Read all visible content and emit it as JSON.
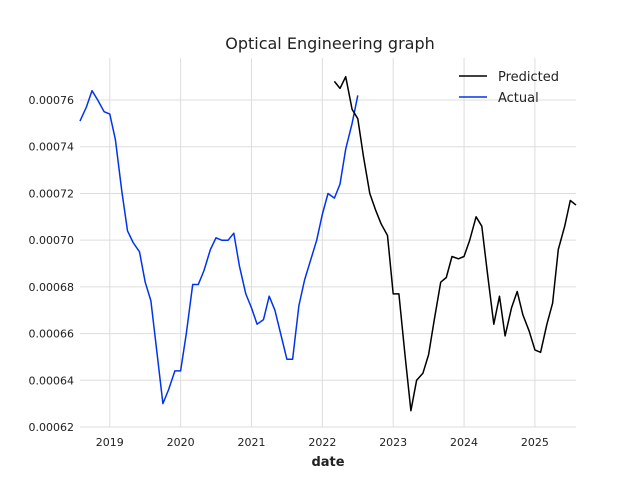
{
  "chart_data": {
    "type": "line",
    "title": "Optical Engineering graph",
    "xlabel": "date",
    "ylabel": "",
    "xlim": [
      2018.58,
      2025.58
    ],
    "ylim": [
      0.00062,
      0.000778
    ],
    "x_ticks": [
      "2019",
      "2020",
      "2021",
      "2022",
      "2023",
      "2024",
      "2025"
    ],
    "y_ticks": [
      "0.00062",
      "0.00064",
      "0.00066",
      "0.00068",
      "0.00070",
      "0.00072",
      "0.00074",
      "0.00076"
    ],
    "grid": true,
    "legend": "top-right",
    "series": [
      {
        "name": "Actual",
        "color": "#0033ee",
        "x": [
          2018.58,
          2018.67,
          2018.75,
          2018.83,
          2018.92,
          2019.0,
          2019.08,
          2019.17,
          2019.25,
          2019.33,
          2019.42,
          2019.5,
          2019.58,
          2019.67,
          2019.75,
          2019.83,
          2019.92,
          2020.0,
          2020.08,
          2020.17,
          2020.25,
          2020.33,
          2020.42,
          2020.5,
          2020.58,
          2020.67,
          2020.75,
          2020.83,
          2020.92,
          2021.0,
          2021.08,
          2021.17,
          2021.25,
          2021.33,
          2021.42,
          2021.5,
          2021.58,
          2021.67,
          2021.75,
          2021.83,
          2021.92,
          2022.0,
          2022.08,
          2022.17,
          2022.25,
          2022.33,
          2022.42,
          2022.5
        ],
        "y": [
          0.000751,
          0.000757,
          0.000764,
          0.00076,
          0.000755,
          0.000754,
          0.000743,
          0.000721,
          0.000704,
          0.000699,
          0.000695,
          0.000682,
          0.000674,
          0.000651,
          0.00063,
          0.000636,
          0.000644,
          0.000644,
          0.00066,
          0.000681,
          0.000681,
          0.000687,
          0.000696,
          0.000701,
          0.0007,
          0.0007,
          0.000703,
          0.000689,
          0.000677,
          0.000671,
          0.000664,
          0.000666,
          0.000676,
          0.00067,
          0.000659,
          0.000649,
          0.000649,
          0.000672,
          0.000683,
          0.000691,
          0.0007,
          0.000711,
          0.00072,
          0.000718,
          0.000724,
          0.000739,
          0.00075,
          0.000762
        ]
      },
      {
        "name": "Predicted",
        "color": "#000000",
        "x": [
          2022.17,
          2022.25,
          2022.33,
          2022.42,
          2022.5,
          2022.58,
          2022.67,
          2022.75,
          2022.83,
          2022.92,
          2023.0,
          2023.08,
          2023.17,
          2023.25,
          2023.33,
          2023.42,
          2023.5,
          2023.58,
          2023.67,
          2023.75,
          2023.83,
          2023.92,
          2024.0,
          2024.08,
          2024.17,
          2024.25,
          2024.33,
          2024.42,
          2024.5,
          2024.58,
          2024.67,
          2024.75,
          2024.83,
          2024.92,
          2025.0,
          2025.08,
          2025.17,
          2025.25,
          2025.33,
          2025.42,
          2025.5,
          2025.58
        ],
        "y": [
          0.000768,
          0.000765,
          0.00077,
          0.000756,
          0.000752,
          0.000736,
          0.00072,
          0.000713,
          0.000707,
          0.000702,
          0.000677,
          0.000677,
          0.00065,
          0.000627,
          0.00064,
          0.000643,
          0.000651,
          0.000666,
          0.000682,
          0.000684,
          0.000693,
          0.000692,
          0.000693,
          0.0007,
          0.00071,
          0.000706,
          0.000686,
          0.000664,
          0.000676,
          0.000659,
          0.000671,
          0.000678,
          0.000668,
          0.000661,
          0.000653,
          0.000652,
          0.000664,
          0.000673,
          0.000696,
          0.000706,
          0.000717,
          0.000715
        ]
      }
    ]
  }
}
